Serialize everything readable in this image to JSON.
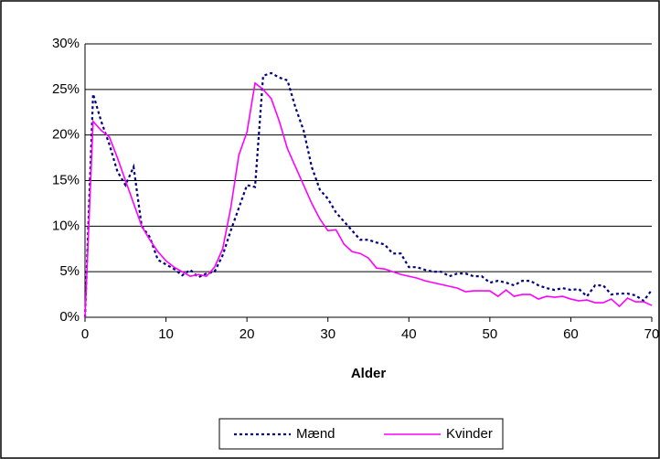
{
  "chart_data": {
    "type": "line",
    "x_label": "Alder",
    "x": [
      0,
      1,
      2,
      3,
      4,
      5,
      6,
      7,
      8,
      9,
      10,
      11,
      12,
      13,
      14,
      15,
      16,
      17,
      18,
      19,
      20,
      21,
      22,
      23,
      24,
      25,
      26,
      27,
      28,
      29,
      30,
      31,
      32,
      33,
      34,
      35,
      36,
      37,
      38,
      39,
      40,
      41,
      42,
      43,
      44,
      45,
      46,
      47,
      48,
      49,
      50,
      51,
      52,
      53,
      54,
      55,
      56,
      57,
      58,
      59,
      60,
      61,
      62,
      63,
      64,
      65,
      66,
      67,
      68,
      69,
      70
    ],
    "series": [
      {
        "name": "Mænd",
        "color": "#000080",
        "dashed": true,
        "values": [
          0,
          24.5,
          21.5,
          19,
          16,
          14.5,
          16.5,
          10,
          8.8,
          6.3,
          5.8,
          5.3,
          4.6,
          5.2,
          4.4,
          4.8,
          5,
          6.8,
          9.5,
          12,
          14.5,
          14.3,
          26.5,
          26.8,
          26.3,
          26,
          23,
          20.5,
          16.5,
          14,
          13,
          11.5,
          10.5,
          9.5,
          8.5,
          8.5,
          8.2,
          8,
          7,
          7,
          5.5,
          5.5,
          5.2,
          5,
          5,
          4.5,
          4.8,
          4.8,
          4.5,
          4.5,
          3.8,
          4,
          3.8,
          3.5,
          4,
          4,
          3.5,
          3.2,
          3,
          3.2,
          3,
          3.1,
          2.3,
          3.5,
          3.5,
          2.5,
          2.6,
          2.6,
          2.4,
          1.8,
          3
        ]
      },
      {
        "name": "Kvinder",
        "color": "#ff00ff",
        "dashed": false,
        "values": [
          0,
          21.5,
          20.5,
          19.8,
          17.5,
          15,
          12.5,
          10,
          8.5,
          7.2,
          6.2,
          5.5,
          5,
          4.5,
          4.7,
          4.5,
          5.5,
          7.5,
          12,
          17.8,
          20.3,
          25.7,
          25,
          24,
          21.5,
          18.5,
          16.5,
          14.5,
          12.5,
          10.8,
          9.5,
          9.6,
          8,
          7.2,
          7,
          6.5,
          5.4,
          5.3,
          5,
          4.7,
          4.5,
          4.3,
          4,
          3.8,
          3.6,
          3.4,
          3.2,
          2.8,
          2.9,
          2.9,
          2.9,
          2.3,
          3,
          2.3,
          2.5,
          2.5,
          2,
          2.3,
          2.2,
          2.3,
          2,
          1.8,
          1.9,
          1.6,
          1.6,
          2,
          1.2,
          2.1,
          1.7,
          1.7,
          1.3
        ]
      }
    ],
    "xlim": [
      0,
      70
    ],
    "xticks": [
      0,
      10,
      20,
      30,
      40,
      50,
      60,
      70
    ],
    "ylim": [
      0,
      30
    ],
    "yticks": [
      {
        "value": 0,
        "label": "0%"
      },
      {
        "value": 5,
        "label": "5%"
      },
      {
        "value": 10,
        "label": "10%"
      },
      {
        "value": 15,
        "label": "15%"
      },
      {
        "value": 20,
        "label": "20%"
      },
      {
        "value": 25,
        "label": "25%"
      },
      {
        "value": 30,
        "label": "30%"
      }
    ],
    "grid": true,
    "legend": "bottom"
  }
}
